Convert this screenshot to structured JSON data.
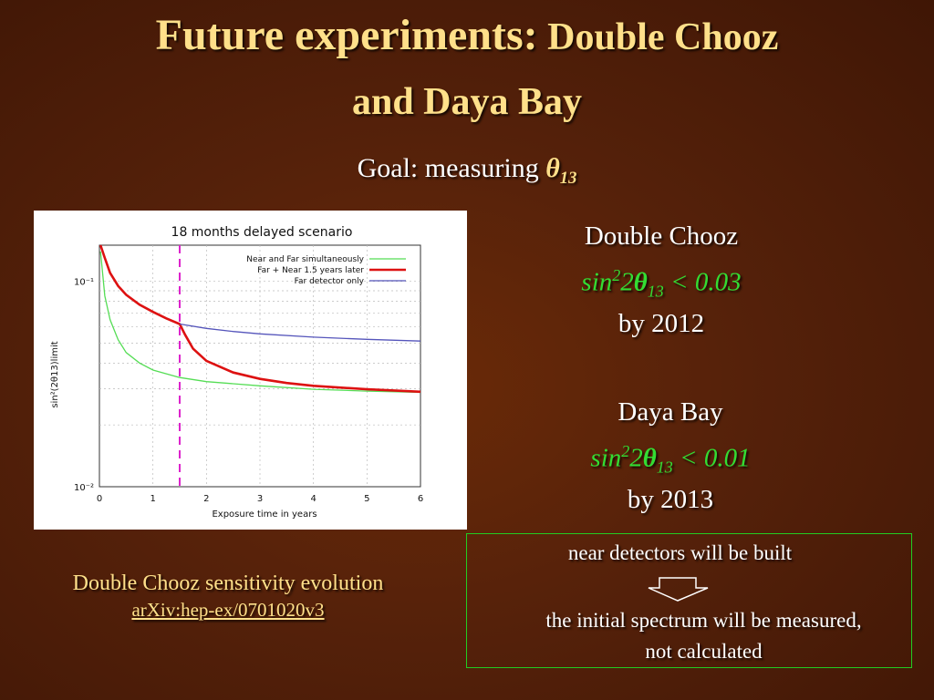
{
  "slide": {
    "title_main": "Future experiments:",
    "title_rest": " Double Chooz",
    "title_line2": "and Daya Bay",
    "goal_label": "Goal: measuring ",
    "goal_symbol": "θ",
    "goal_sub": "13"
  },
  "double_chooz": {
    "name": "Double Chooz",
    "formula_prefix": "sin",
    "formula_sup": "2",
    "formula_two": "2",
    "formula_theta": "θ",
    "formula_sub": "13",
    "formula_rel": " < ",
    "formula_value": "0.03",
    "year": "by 2012"
  },
  "daya_bay": {
    "name": "Daya Bay",
    "formula_prefix": "sin",
    "formula_sup": "2",
    "formula_two": "2",
    "formula_theta": "θ",
    "formula_sub": "13",
    "formula_rel": " < ",
    "formula_value": "0.01",
    "year": "by 2013"
  },
  "caption": {
    "line1": "Double Chooz sensitivity evolution",
    "link": "arXiv:hep-ex/0701020v3"
  },
  "note": {
    "line1": "near detectors will be built",
    "line2": "the initial spectrum will be measured,",
    "line3": "not calculated"
  },
  "colors": {
    "title": "#ffe08a",
    "green_text": "#33dd33",
    "near_far": "#55dd55",
    "far_near_later": "#dd1111",
    "far_only": "#5555bb",
    "dashed_marker": "#dd22cc"
  },
  "chart_data": {
    "type": "line",
    "title": "18 months delayed scenario",
    "xlabel": "Exposure time in years",
    "ylabel": "sin²(2θ13)limit",
    "x_ticks": [
      "0",
      "1",
      "2",
      "3",
      "4",
      "5",
      "6"
    ],
    "y_ticks": [
      "10⁻¹",
      "10⁻²"
    ],
    "xlim": [
      0,
      6
    ],
    "ylim": [
      0.01,
      0.15
    ],
    "y_scale": "log",
    "legend_position": "top-right",
    "marker_x": 1.5,
    "series": [
      {
        "name": "Near and Far simultaneously",
        "color": "#55dd55",
        "points": [
          [
            0.02,
            0.14
          ],
          [
            0.1,
            0.085
          ],
          [
            0.2,
            0.065
          ],
          [
            0.35,
            0.052
          ],
          [
            0.5,
            0.045
          ],
          [
            0.75,
            0.04
          ],
          [
            1.0,
            0.037
          ],
          [
            1.5,
            0.034
          ],
          [
            2.0,
            0.0325
          ],
          [
            3.0,
            0.031
          ],
          [
            4.0,
            0.0298
          ],
          [
            5.0,
            0.0292
          ],
          [
            6.0,
            0.0288
          ]
        ]
      },
      {
        "name": "Far + Near 1.5 years later",
        "color": "#dd1111",
        "points": [
          [
            0.02,
            0.165
          ],
          [
            0.1,
            0.13
          ],
          [
            0.2,
            0.11
          ],
          [
            0.35,
            0.095
          ],
          [
            0.5,
            0.086
          ],
          [
            0.75,
            0.077
          ],
          [
            1.0,
            0.071
          ],
          [
            1.25,
            0.066
          ],
          [
            1.5,
            0.062
          ],
          [
            1.6,
            0.055
          ],
          [
            1.75,
            0.047
          ],
          [
            2.0,
            0.041
          ],
          [
            2.5,
            0.036
          ],
          [
            3.0,
            0.0335
          ],
          [
            3.5,
            0.032
          ],
          [
            4.0,
            0.031
          ],
          [
            5.0,
            0.0298
          ],
          [
            6.0,
            0.029
          ]
        ]
      },
      {
        "name": "Far detector only",
        "color": "#5555bb",
        "points": [
          [
            1.5,
            0.062
          ],
          [
            2.0,
            0.059
          ],
          [
            2.5,
            0.057
          ],
          [
            3.0,
            0.0555
          ],
          [
            4.0,
            0.0535
          ],
          [
            5.0,
            0.0522
          ],
          [
            6.0,
            0.0512
          ]
        ]
      }
    ]
  }
}
